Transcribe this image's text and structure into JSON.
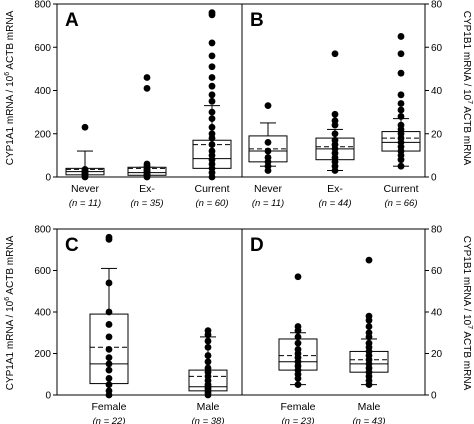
{
  "figure": {
    "left_ylabel": "CYP1A1 mRNA / 10^6 ACTB mRNA",
    "right_ylabel": "CYP1B1 mRNA / 10^7 ACTB mRNA"
  },
  "chart_data": [
    {
      "type": "box",
      "panel": "A",
      "ylabel": "CYP1A1 mRNA / 10^6 ACTB mRNA",
      "ylim": [
        0,
        800
      ],
      "yticks": [
        0,
        200,
        400,
        600,
        800
      ],
      "y_axis_side": "left",
      "categories": [
        "Never",
        "Ex-",
        "Current"
      ],
      "n_labels": [
        "(n = 11)",
        "(n = 35)",
        "(n = 60)"
      ],
      "boxes": [
        {
          "whisker_low": 0,
          "q1": 10,
          "median": 25,
          "mean": 35,
          "q3": 40,
          "whisker_high": 120,
          "outliers": [
            0,
            5,
            10,
            15,
            20,
            25,
            30,
            35,
            230
          ]
        },
        {
          "whisker_low": 0,
          "q1": 8,
          "median": 20,
          "mean": 40,
          "q3": 45,
          "whisker_high": 45,
          "outliers": [
            0,
            5,
            10,
            15,
            20,
            25,
            30,
            35,
            40,
            50,
            60,
            410,
            460
          ]
        },
        {
          "whisker_low": 0,
          "q1": 40,
          "median": 85,
          "mean": 150,
          "q3": 170,
          "whisker_high": 330,
          "outliers": [
            0,
            20,
            40,
            60,
            80,
            100,
            120,
            150,
            180,
            200,
            230,
            270,
            300,
            350,
            380,
            420,
            460,
            510,
            560,
            620,
            750,
            760
          ]
        }
      ]
    },
    {
      "type": "box",
      "panel": "B",
      "ylabel": "CYP1B1 mRNA / 10^7 ACTB mRNA",
      "ylim": [
        0,
        80
      ],
      "yticks": [
        0,
        20,
        40,
        60,
        80
      ],
      "y_axis_side": "right",
      "categories": [
        "Never",
        "Ex-",
        "Current"
      ],
      "n_labels": [
        "(n = 11)",
        "(n = 44)",
        "(n = 66)"
      ],
      "boxes": [
        {
          "whisker_low": 5,
          "q1": 7,
          "median": 12,
          "mean": 13,
          "q3": 19,
          "whisker_high": 25,
          "outliers": [
            3,
            5,
            7,
            9,
            12,
            16,
            33
          ]
        },
        {
          "whisker_low": 3,
          "q1": 8,
          "median": 13,
          "mean": 14,
          "q3": 18,
          "whisker_high": 22,
          "outliers": [
            3,
            5,
            7,
            9,
            11,
            13,
            15,
            17,
            20,
            24,
            26,
            29,
            57
          ]
        },
        {
          "whisker_low": 5,
          "q1": 12,
          "median": 16,
          "mean": 18,
          "q3": 21,
          "whisker_high": 27,
          "outliers": [
            5,
            8,
            10,
            12,
            14,
            16,
            18,
            20,
            22,
            24,
            28,
            31,
            34,
            38,
            48,
            57,
            65
          ]
        }
      ]
    },
    {
      "type": "box",
      "panel": "C",
      "ylabel": "CYP1A1 mRNA / 10^6 ACTB mRNA",
      "ylim": [
        0,
        800
      ],
      "yticks": [
        0,
        200,
        400,
        600,
        800
      ],
      "y_axis_side": "left",
      "categories": [
        "Female",
        "Male"
      ],
      "n_labels": [
        "(n = 22)",
        "(n = 38)"
      ],
      "boxes": [
        {
          "whisker_low": 0,
          "q1": 55,
          "median": 150,
          "mean": 230,
          "q3": 390,
          "whisker_high": 610,
          "outliers": [
            0,
            20,
            50,
            80,
            120,
            150,
            180,
            220,
            280,
            340,
            400,
            540,
            750,
            760
          ]
        },
        {
          "whisker_low": 0,
          "q1": 20,
          "median": 40,
          "mean": 90,
          "q3": 120,
          "whisker_high": 280,
          "outliers": [
            0,
            10,
            20,
            30,
            40,
            50,
            70,
            90,
            110,
            130,
            160,
            190,
            230,
            260,
            290,
            310
          ]
        }
      ]
    },
    {
      "type": "box",
      "panel": "D",
      "ylabel": "CYP1B1 mRNA / 10^7 ACTB mRNA",
      "ylim": [
        0,
        80
      ],
      "yticks": [
        0,
        20,
        40,
        60,
        80
      ],
      "y_axis_side": "right",
      "categories": [
        "Female",
        "Male"
      ],
      "n_labels": [
        "(n = 23)",
        "(n = 43)"
      ],
      "boxes": [
        {
          "whisker_low": 5,
          "q1": 12,
          "median": 16,
          "mean": 19,
          "q3": 27,
          "whisker_high": 30,
          "outliers": [
            5,
            8,
            10,
            12,
            14,
            16,
            18,
            20,
            22,
            25,
            28,
            31,
            33,
            57
          ]
        },
        {
          "whisker_low": 5,
          "q1": 11,
          "median": 15,
          "mean": 17,
          "q3": 21,
          "whisker_high": 27,
          "outliers": [
            5,
            7,
            9,
            11,
            13,
            15,
            17,
            19,
            21,
            23,
            25,
            28,
            30,
            33,
            36,
            38,
            65
          ]
        }
      ]
    }
  ]
}
